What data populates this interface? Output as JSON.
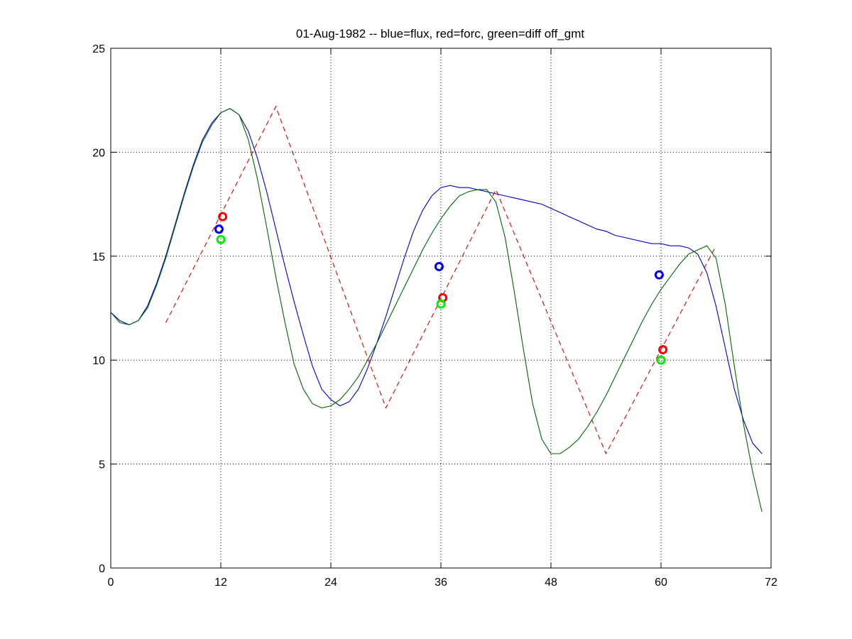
{
  "chart_data": {
    "type": "line",
    "title": "01-Aug-1982 -- blue=flux, red=forc, green=diff off_gmt",
    "xlabel": "",
    "ylabel": "",
    "xlim": [
      0,
      72
    ],
    "ylim": [
      0,
      25
    ],
    "xticks": [
      0,
      12,
      24,
      36,
      48,
      60,
      72
    ],
    "yticks": [
      0,
      5,
      10,
      15,
      20,
      25
    ],
    "grid": true,
    "series": [
      {
        "color": "#0000cc",
        "style": "solid",
        "x": [
          0,
          1,
          2,
          3,
          4,
          5,
          6,
          7,
          8,
          9,
          10,
          11,
          12,
          13,
          14,
          15,
          16,
          17,
          18,
          19,
          20,
          21,
          22,
          23,
          24,
          25,
          26,
          27,
          28,
          29,
          30,
          31,
          32,
          33,
          34,
          35,
          36,
          37,
          38,
          39,
          40,
          41,
          42,
          43,
          44,
          45,
          46,
          47,
          48,
          49,
          50,
          51,
          52,
          53,
          54,
          55,
          56,
          57,
          58,
          59,
          60,
          61,
          62,
          63,
          64,
          65,
          66,
          67,
          68,
          69,
          70,
          71
        ],
        "y": [
          12.3,
          11.9,
          11.7,
          11.9,
          12.6,
          13.7,
          15.0,
          16.5,
          18.0,
          19.4,
          20.6,
          21.4,
          21.9,
          22.1,
          21.8,
          21.0,
          19.7,
          18.1,
          16.3,
          14.5,
          12.8,
          11.2,
          9.7,
          8.6,
          8.1,
          7.8,
          8.0,
          8.6,
          9.6,
          10.8,
          12.1,
          13.5,
          14.9,
          16.2,
          17.2,
          17.9,
          18.3,
          18.4,
          18.3,
          18.3,
          18.2,
          18.1,
          18.0,
          17.9,
          17.8,
          17.7,
          17.6,
          17.5,
          17.3,
          17.1,
          16.9,
          16.7,
          16.5,
          16.3,
          16.2,
          16.0,
          15.9,
          15.8,
          15.7,
          15.6,
          15.6,
          15.5,
          15.5,
          15.4,
          15.1,
          14.2,
          12.6,
          10.6,
          8.6,
          7.1,
          6.0,
          5.5
        ]
      },
      {
        "color": "#006600",
        "style": "solid",
        "x": [
          0,
          1,
          2,
          3,
          4,
          5,
          6,
          7,
          8,
          9,
          10,
          11,
          12,
          13,
          14,
          15,
          16,
          17,
          18,
          19,
          20,
          21,
          22,
          23,
          24,
          25,
          26,
          27,
          28,
          29,
          30,
          31,
          32,
          33,
          34,
          35,
          36,
          37,
          38,
          39,
          40,
          41,
          42,
          43,
          44,
          45,
          46,
          47,
          48,
          49,
          50,
          51,
          52,
          53,
          54,
          55,
          56,
          57,
          58,
          59,
          60,
          61,
          62,
          63,
          64,
          65,
          66,
          67,
          68,
          69,
          70,
          71
        ],
        "y": [
          12.3,
          11.8,
          11.7,
          11.9,
          12.5,
          13.6,
          14.9,
          16.4,
          17.9,
          19.3,
          20.5,
          21.3,
          21.9,
          22.1,
          21.8,
          20.6,
          18.7,
          16.4,
          14.0,
          11.8,
          9.8,
          8.6,
          7.9,
          7.7,
          7.8,
          8.1,
          8.6,
          9.2,
          10.0,
          10.8,
          11.7,
          12.6,
          13.5,
          14.4,
          15.3,
          16.1,
          16.8,
          17.4,
          17.9,
          18.1,
          18.2,
          18.2,
          17.6,
          15.9,
          13.3,
          10.5,
          7.9,
          6.2,
          5.5,
          5.5,
          5.8,
          6.2,
          6.8,
          7.5,
          8.3,
          9.2,
          10.1,
          11.0,
          11.9,
          12.7,
          13.4,
          14.0,
          14.6,
          15.1,
          15.3,
          15.5,
          14.9,
          12.7,
          9.7,
          6.9,
          4.6,
          2.7
        ]
      },
      {
        "color": "#dd0000",
        "style": "dashed",
        "x": [
          6,
          18,
          30,
          42,
          54,
          66
        ],
        "y": [
          11.8,
          22.2,
          7.7,
          18.2,
          5.5,
          15.5
        ]
      }
    ],
    "markers": [
      {
        "color": "#0000ee",
        "x": 11.8,
        "y": 16.3
      },
      {
        "color": "#ff0000",
        "x": 12.2,
        "y": 16.9
      },
      {
        "color": "#00ee00",
        "x": 12.0,
        "y": 15.8
      },
      {
        "color": "#0000ee",
        "x": 35.8,
        "y": 14.5
      },
      {
        "color": "#ff0000",
        "x": 36.2,
        "y": 13.0
      },
      {
        "color": "#00ee00",
        "x": 36.0,
        "y": 12.7
      },
      {
        "color": "#0000ee",
        "x": 59.8,
        "y": 14.1
      },
      {
        "color": "#ff0000",
        "x": 60.2,
        "y": 10.5
      },
      {
        "color": "#00ee00",
        "x": 60.0,
        "y": 10.0
      }
    ]
  }
}
